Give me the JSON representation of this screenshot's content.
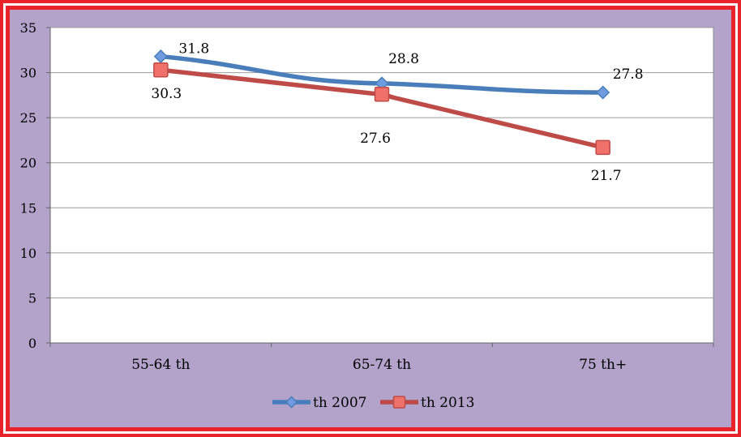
{
  "colors": {
    "frame_red": "#e8242a",
    "background": "#b3a2c9",
    "plot_area": "#ffffff",
    "grid": "#9c9c9c",
    "series_2007": "#4a7ebb",
    "series_2013": "#be4b48",
    "marker_2007_fill": "#6f9be0",
    "marker_2013_fill": "#f0706a"
  },
  "chart_data": {
    "type": "line",
    "categories": [
      "55-64 th",
      "65-74 th",
      "75 th+"
    ],
    "series": [
      {
        "name": "th 2007",
        "values": [
          31.8,
          28.8,
          27.8
        ],
        "color": "#4a7ebb",
        "marker": "diamond"
      },
      {
        "name": "th 2013",
        "values": [
          30.3,
          27.6,
          21.7
        ],
        "color": "#be4b48",
        "marker": "square"
      }
    ],
    "data_labels": {
      "series_2007": [
        "31.8",
        "28.8",
        "27.8"
      ],
      "series_2013": [
        "30.3",
        "27.6",
        "21.7"
      ]
    },
    "ylim": [
      0,
      35
    ],
    "yticks": [
      0,
      5,
      10,
      15,
      20,
      25,
      30,
      35
    ],
    "ytick_labels": [
      "0",
      "5",
      "10",
      "15",
      "20",
      "25",
      "30",
      "35"
    ],
    "title": "",
    "xlabel": "",
    "ylabel": "",
    "grid": "horizontal",
    "legend_position": "bottom"
  }
}
